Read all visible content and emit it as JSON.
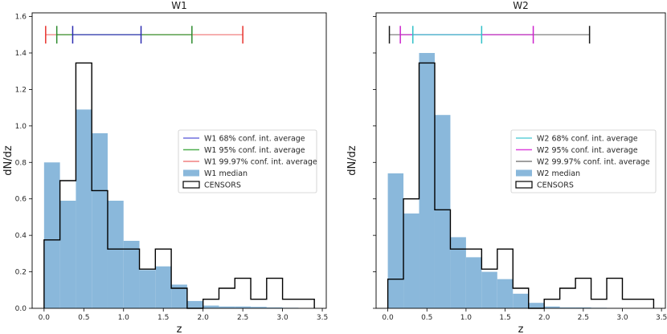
{
  "chart_data": [
    {
      "type": "bar",
      "title": "W1",
      "xlabel": "z",
      "ylabel": "dN/dz",
      "xlim": [
        -0.15,
        3.55
      ],
      "ylim": [
        0,
        1.62
      ],
      "xticks": [
        0.0,
        0.5,
        1.0,
        1.5,
        2.0,
        2.5,
        3.0,
        3.5
      ],
      "xtick_labels": [
        "0.0",
        "0.5",
        "1.0",
        "1.5",
        "2.0",
        "2.5",
        "3.0",
        "3.5"
      ],
      "yticks": [
        0.0,
        0.2,
        0.4,
        0.6,
        0.8,
        1.0,
        1.2,
        1.4,
        1.6
      ],
      "ytick_labels": [
        "0.0",
        "0.2",
        "0.4",
        "0.6",
        "0.8",
        "1.0",
        "1.2",
        "1.4",
        "1.6"
      ],
      "show_ytick_labels": true,
      "median_hist": {
        "name": "W1 median",
        "color": "#8ab8db",
        "edges": [
          0.0,
          0.2,
          0.4,
          0.6,
          0.8,
          1.0,
          1.2,
          1.4,
          1.6,
          1.8,
          2.0,
          2.2,
          2.4,
          2.6,
          2.8,
          3.0,
          3.2,
          3.4
        ],
        "values": [
          0.8,
          0.59,
          1.09,
          0.96,
          0.59,
          0.37,
          0.21,
          0.23,
          0.13,
          0.04,
          0.015,
          0.01,
          0.01,
          0.008,
          0.005,
          0.003,
          0.0
        ]
      },
      "censors_hist": {
        "name": "CENSORS",
        "color": "#000000",
        "edges": [
          0.0,
          0.2,
          0.4,
          0.6,
          0.8,
          1.0,
          1.2,
          1.4,
          1.6,
          1.8,
          2.0,
          2.2,
          2.4,
          2.6,
          2.8,
          3.0,
          3.2,
          3.4
        ],
        "values": [
          0.375,
          0.7,
          1.345,
          0.645,
          0.325,
          0.325,
          0.215,
          0.325,
          0.11,
          0.0,
          0.05,
          0.11,
          0.165,
          0.05,
          0.165,
          0.05,
          0.05
        ]
      },
      "confidence_intervals": {
        "y": 1.5,
        "intervals": [
          {
            "name": "W1 99.97% conf. int. average",
            "color": "#f08080",
            "tick_color": "#e8322d",
            "low": 0.02,
            "high": 2.5
          },
          {
            "name": "W1 95% conf. int. average",
            "color": "#3a9e3a",
            "tick_color": "#2e8b2e",
            "low": 0.16,
            "high": 1.86
          },
          {
            "name": "W1 68% conf. int. average",
            "color": "#4040c8",
            "tick_color": "#2b2bb0",
            "low": 0.36,
            "high": 1.22
          }
        ]
      },
      "legend": {
        "position": "center-right",
        "entries": [
          {
            "label": "W1 68% conf. int. average",
            "kind": "line",
            "color": "#7070dd"
          },
          {
            "label": "W1 95% conf. int. average",
            "kind": "line",
            "color": "#4faf4f"
          },
          {
            "label": "W1 99.97% conf. int. average",
            "kind": "line",
            "color": "#f08080"
          },
          {
            "label": "W1 median",
            "kind": "patch",
            "color": "#8ab8db"
          },
          {
            "label": "CENSORS",
            "kind": "outline",
            "color": "#000000"
          }
        ]
      }
    },
    {
      "type": "bar",
      "title": "W2",
      "xlabel": "z",
      "ylabel": "dN/dz",
      "xlim": [
        -0.15,
        3.55
      ],
      "ylim": [
        0,
        1.62
      ],
      "xticks": [
        0.0,
        0.5,
        1.0,
        1.5,
        2.0,
        2.5,
        3.0,
        3.5
      ],
      "xtick_labels": [
        "0.0",
        "0.5",
        "1.0",
        "1.5",
        "2.0",
        "2.5",
        "3.0",
        "3.5"
      ],
      "yticks": [
        0.0,
        0.2,
        0.4,
        0.6,
        0.8,
        1.0,
        1.2,
        1.4,
        1.6
      ],
      "ytick_labels": [
        "",
        "",
        "",
        "",
        "",
        "",
        "",
        "",
        ""
      ],
      "show_ytick_labels": false,
      "median_hist": {
        "name": "W2 median",
        "color": "#8ab8db",
        "edges": [
          0.0,
          0.2,
          0.4,
          0.6,
          0.8,
          1.0,
          1.2,
          1.4,
          1.6,
          1.8,
          2.0,
          2.2,
          2.4,
          2.6,
          2.8,
          3.0,
          3.2,
          3.4
        ],
        "values": [
          0.74,
          0.52,
          1.4,
          1.06,
          0.39,
          0.28,
          0.2,
          0.16,
          0.08,
          0.03,
          0.01,
          0.005,
          0.005,
          0.003,
          0.002,
          0.0,
          0.0
        ]
      },
      "censors_hist": {
        "name": "CENSORS",
        "color": "#000000",
        "edges": [
          0.0,
          0.2,
          0.4,
          0.6,
          0.8,
          1.0,
          1.2,
          1.4,
          1.6,
          1.8,
          2.0,
          2.2,
          2.4,
          2.6,
          2.8,
          3.0,
          3.2,
          3.4
        ],
        "values": [
          0.16,
          0.6,
          1.345,
          0.54,
          0.325,
          0.325,
          0.215,
          0.325,
          0.11,
          0.0,
          0.05,
          0.11,
          0.165,
          0.05,
          0.165,
          0.05,
          0.05
        ]
      },
      "confidence_intervals": {
        "y": 1.5,
        "intervals": [
          {
            "name": "W2 99.97% conf. int. average",
            "color": "#808080",
            "tick_color": "#1a1a1a",
            "low": 0.02,
            "high": 2.58
          },
          {
            "name": "W2 95% conf. int. average",
            "color": "#cc33cc",
            "tick_color": "#cc22cc",
            "low": 0.16,
            "high": 1.86
          },
          {
            "name": "W2 68% conf. int. average",
            "color": "#40c8d0",
            "tick_color": "#30c0c8",
            "low": 0.32,
            "high": 1.2
          }
        ]
      },
      "legend": {
        "position": "center-right",
        "entries": [
          {
            "label": "W2 68% conf. int. average",
            "kind": "line",
            "color": "#60d0d8"
          },
          {
            "label": "W2 95% conf. int. average",
            "kind": "line",
            "color": "#dd44dd"
          },
          {
            "label": "W2 99.97% conf. int. average",
            "kind": "line",
            "color": "#808080"
          },
          {
            "label": "W2 median",
            "kind": "patch",
            "color": "#8ab8db"
          },
          {
            "label": "CENSORS",
            "kind": "outline",
            "color": "#000000"
          }
        ]
      }
    }
  ]
}
